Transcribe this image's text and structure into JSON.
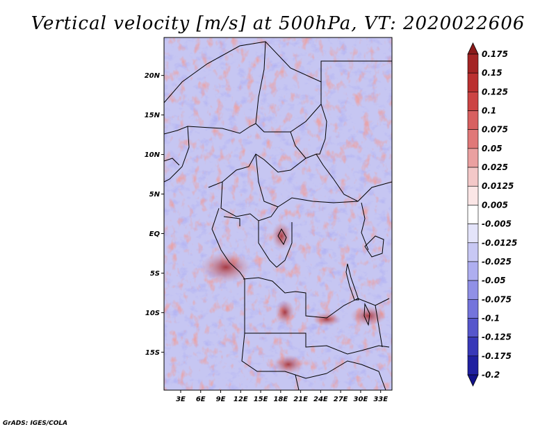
{
  "chart_data": {
    "type": "heatmap",
    "title": "Vertical velocity [m/s] at 500hPa, VT: 2020022606",
    "variable": "Vertical velocity",
    "units": "m/s",
    "level": "500hPa",
    "valid_time": "2020022606",
    "x_ticks": [
      "3E",
      "6E",
      "9E",
      "12E",
      "15E",
      "18E",
      "21E",
      "24E",
      "27E",
      "30E",
      "33E"
    ],
    "y_ticks": [
      "20N",
      "15N",
      "10N",
      "5N",
      "EQ",
      "5S",
      "10S",
      "15S"
    ],
    "lon_range": [
      0.5,
      34.7
    ],
    "lat_range": [
      -19.8,
      24.8
    ],
    "colorbar": {
      "levels": [
        "0.175",
        "0.15",
        "0.125",
        "0.1",
        "0.075",
        "0.05",
        "0.025",
        "0.0125",
        "0.005",
        "-0.005",
        "-0.0125",
        "-0.025",
        "-0.05",
        "-0.075",
        "-0.1",
        "-0.125",
        "-0.175",
        "-0.2"
      ],
      "colors": [
        "#8b1a1a",
        "#a42424",
        "#bb3030",
        "#cc4444",
        "#d86060",
        "#e07878",
        "#eaa0a0",
        "#f3c8c8",
        "#fbe6e6",
        "#ffffff",
        "#e4e4fa",
        "#c8c8f4",
        "#aeaef0",
        "#9090e6",
        "#7474dc",
        "#5656cc",
        "#3838b8",
        "#2020a0",
        "#12128a"
      ]
    }
  },
  "credit": "GrADS: IGES/COLA"
}
